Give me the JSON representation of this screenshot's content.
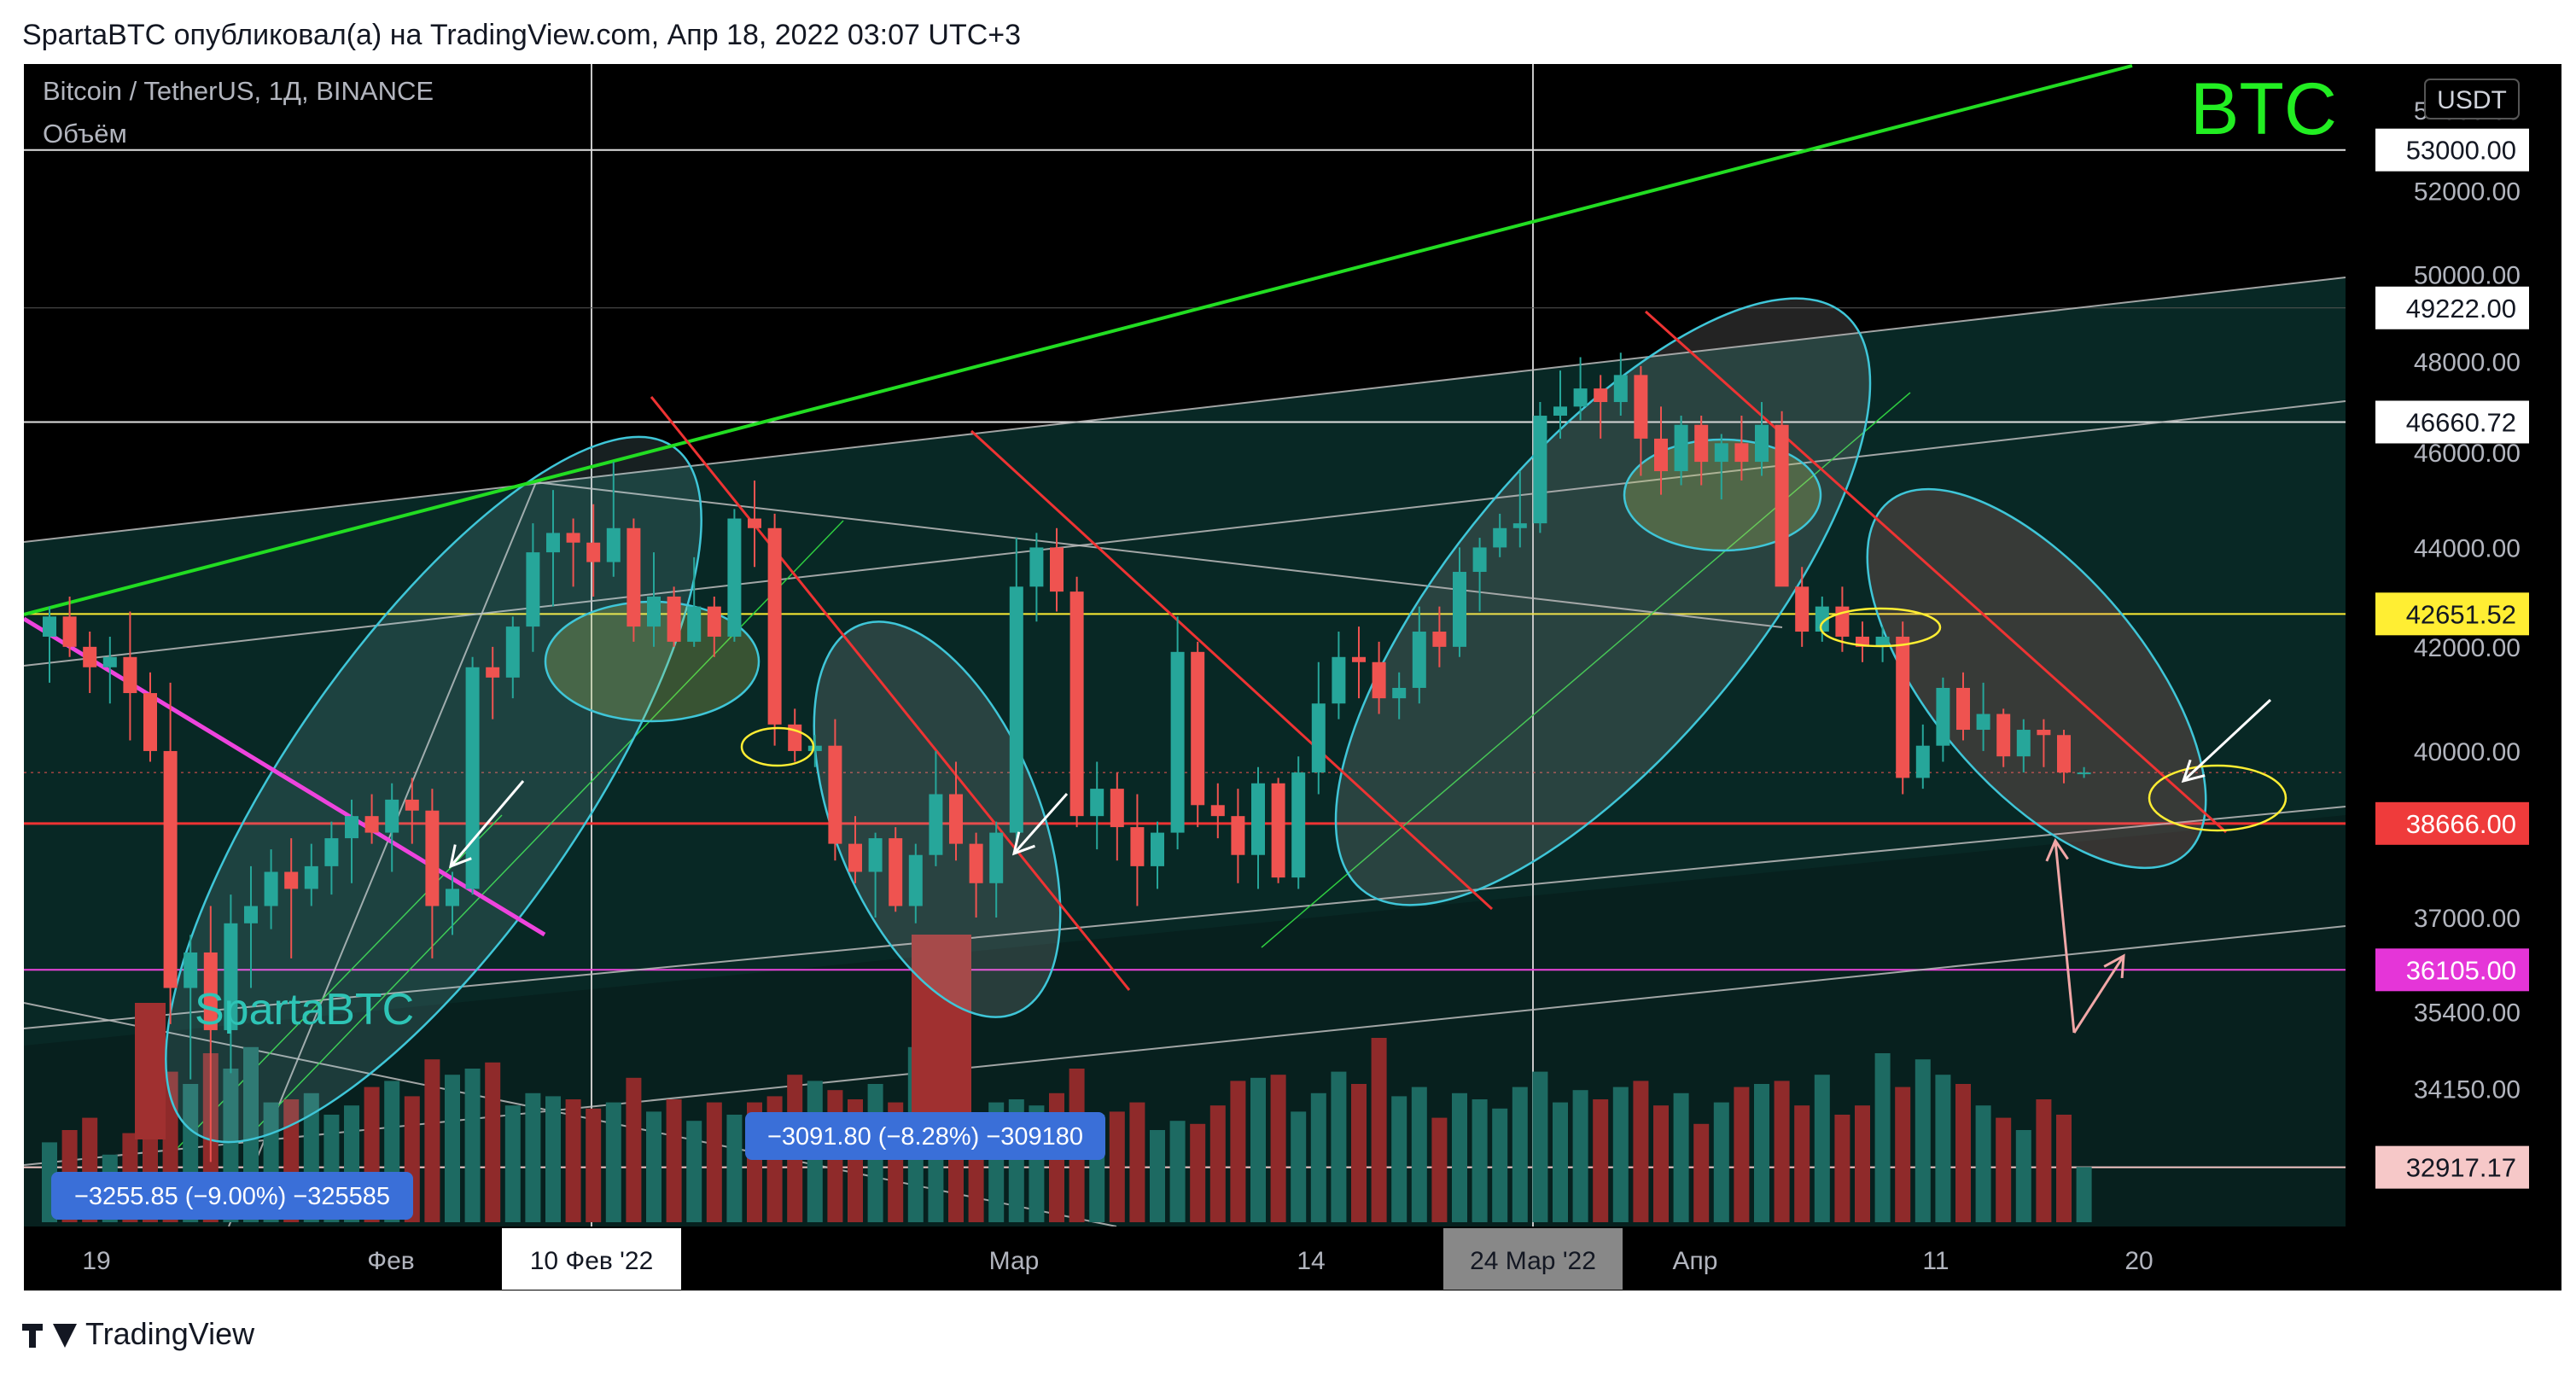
{
  "header": {
    "publisher_line": "SpartaBTC опубликовал(а) на TradingView.com, Апр 18, 2022 03:07 UTC+3"
  },
  "footer": {
    "brand": "TradingView"
  },
  "colors": {
    "background": "#000000",
    "up": "#26a69a",
    "down": "#ef5350",
    "green_line": "#22dd22",
    "magenta_line": "#ee44dd",
    "red_line": "#ee3333",
    "ellipse": "#3fc6d8",
    "yellow": "#ffee33",
    "watermark_green": "#22ee22",
    "watermark_teal": "#2ec4b6"
  },
  "chart_data": {
    "type": "candlestick",
    "symbol_line": "Bitcoin / TetherUS, 1Д, BINANCE",
    "volume_label": "Объём",
    "currency_badge": "USDT",
    "watermark": "BTC",
    "signature": "SpartaBTC",
    "price_scale": "log",
    "ylim": [
      32300,
      55000
    ],
    "y_tick_labels": [
      "54000.00",
      "52000.00",
      "50000.00",
      "48000.00",
      "46000.00",
      "44000.00",
      "42000.00",
      "40000.00",
      "37000.00",
      "35400.00",
      "34150.00"
    ],
    "x_tick_labels": [
      "19",
      "Фев",
      "10 Фев '22",
      "Мар",
      "14",
      "24 Мар '22",
      "Апр",
      "11",
      "20"
    ],
    "crosshair_dates": [
      "10 Фев '22",
      "24 Мар '22"
    ],
    "price_labels": [
      {
        "value": "53000.00",
        "style": "white"
      },
      {
        "value": "49222.00",
        "style": "white"
      },
      {
        "value": "46660.72",
        "style": "white"
      },
      {
        "value": "42651.52",
        "style": "yellow"
      },
      {
        "value": "38666.00",
        "style": "red"
      },
      {
        "value": "36105.00",
        "style": "magenta"
      },
      {
        "value": "32917.17",
        "style": "pink"
      }
    ],
    "measure_labels": [
      "−3255.85 (−9.00%) −325585",
      "−3091.80 (−8.28%) −309180"
    ],
    "candles": [
      [
        42200,
        42800,
        41300,
        42600
      ],
      [
        42600,
        43000,
        41800,
        42000
      ],
      [
        42000,
        42300,
        41100,
        41600
      ],
      [
        41600,
        42200,
        40900,
        41800
      ],
      [
        41800,
        42700,
        40200,
        41100
      ],
      [
        41100,
        41500,
        39800,
        40000
      ],
      [
        40000,
        41300,
        35200,
        35800
      ],
      [
        35800,
        36700,
        34300,
        36400
      ],
      [
        36400,
        37200,
        33000,
        35100
      ],
      [
        35100,
        37400,
        34400,
        36900
      ],
      [
        36900,
        37900,
        35800,
        37200
      ],
      [
        37200,
        38200,
        36800,
        37800
      ],
      [
        37800,
        38400,
        36300,
        37500
      ],
      [
        37500,
        38300,
        37200,
        37900
      ],
      [
        37900,
        38700,
        37400,
        38400
      ],
      [
        38400,
        39100,
        37600,
        38800
      ],
      [
        38800,
        39200,
        38300,
        38500
      ],
      [
        38500,
        39400,
        37800,
        39100
      ],
      [
        39100,
        39500,
        38300,
        38900
      ],
      [
        38900,
        39300,
        36300,
        37200
      ],
      [
        37200,
        37800,
        36700,
        37500
      ],
      [
        37500,
        41800,
        37400,
        41600
      ],
      [
        41600,
        42000,
        40600,
        41400
      ],
      [
        41400,
        42600,
        41000,
        42400
      ],
      [
        42400,
        44500,
        41900,
        43900
      ],
      [
        43900,
        45200,
        42800,
        44300
      ],
      [
        44300,
        44600,
        43200,
        44100
      ],
      [
        44100,
        44900,
        43000,
        43700
      ],
      [
        43700,
        45800,
        43400,
        44400
      ],
      [
        44400,
        44600,
        42100,
        42400
      ],
      [
        42400,
        43900,
        42000,
        43000
      ],
      [
        43000,
        43200,
        42000,
        42100
      ],
      [
        42100,
        43800,
        42000,
        42800
      ],
      [
        42800,
        43000,
        41800,
        42200
      ],
      [
        42200,
        44800,
        42100,
        44600
      ],
      [
        44600,
        45400,
        43600,
        44400
      ],
      [
        44400,
        44700,
        40100,
        40500
      ],
      [
        40500,
        40800,
        39800,
        40000
      ],
      [
        40000,
        40300,
        39700,
        40100
      ],
      [
        40100,
        40600,
        38000,
        38300
      ],
      [
        38300,
        38800,
        37600,
        37800
      ],
      [
        37800,
        38500,
        37000,
        38400
      ],
      [
        38400,
        38600,
        37100,
        37200
      ],
      [
        37200,
        38300,
        36900,
        38100
      ],
      [
        38100,
        40000,
        37900,
        39200
      ],
      [
        39200,
        39800,
        38000,
        38300
      ],
      [
        38300,
        38500,
        37000,
        37600
      ],
      [
        37600,
        38700,
        37000,
        38500
      ],
      [
        38500,
        44200,
        38300,
        43200
      ],
      [
        43200,
        44300,
        42500,
        44000
      ],
      [
        44000,
        44400,
        42700,
        43100
      ],
      [
        43100,
        43400,
        38600,
        38800
      ],
      [
        38800,
        39800,
        38200,
        39300
      ],
      [
        39300,
        39600,
        38000,
        38600
      ],
      [
        38600,
        39200,
        37200,
        37900
      ],
      [
        37900,
        38700,
        37500,
        38500
      ],
      [
        38500,
        42600,
        38200,
        41900
      ],
      [
        41900,
        42100,
        38600,
        39000
      ],
      [
        39000,
        39400,
        38400,
        38800
      ],
      [
        38800,
        39300,
        37600,
        38100
      ],
      [
        38100,
        39700,
        37500,
        39400
      ],
      [
        39400,
        39500,
        37600,
        37700
      ],
      [
        37700,
        39900,
        37500,
        39600
      ],
      [
        39600,
        41700,
        39200,
        40900
      ],
      [
        40900,
        42300,
        40600,
        41800
      ],
      [
        41800,
        42400,
        41000,
        41700
      ],
      [
        41700,
        42100,
        40700,
        41000
      ],
      [
        41000,
        41500,
        40600,
        41200
      ],
      [
        41200,
        42800,
        40900,
        42300
      ],
      [
        42300,
        42800,
        41600,
        42000
      ],
      [
        42000,
        44000,
        41800,
        43500
      ],
      [
        43500,
        44200,
        42700,
        44000
      ],
      [
        44000,
        44700,
        43800,
        44400
      ],
      [
        44400,
        45600,
        44000,
        44500
      ],
      [
        44500,
        47100,
        44300,
        46800
      ],
      [
        46800,
        47800,
        46300,
        47000
      ],
      [
        47000,
        48100,
        46700,
        47400
      ],
      [
        47400,
        47700,
        46300,
        47100
      ],
      [
        47100,
        48200,
        46800,
        47700
      ],
      [
        47700,
        47900,
        45500,
        46300
      ],
      [
        46300,
        47000,
        45100,
        45600
      ],
      [
        45600,
        46800,
        45300,
        46600
      ],
      [
        46600,
        46800,
        45300,
        45800
      ],
      [
        45800,
        46400,
        45000,
        46200
      ],
      [
        46200,
        46800,
        45400,
        45800
      ],
      [
        45800,
        47100,
        45500,
        46600
      ],
      [
        46600,
        46900,
        43400,
        43200
      ],
      [
        43200,
        43600,
        42000,
        42300
      ],
      [
        42300,
        43000,
        42100,
        42800
      ],
      [
        42800,
        43200,
        41900,
        42200
      ],
      [
        42200,
        42500,
        41700,
        42000
      ],
      [
        42000,
        42400,
        41700,
        42200
      ],
      [
        42200,
        42500,
        39200,
        39500
      ],
      [
        39500,
        40500,
        39300,
        40100
      ],
      [
        40100,
        41400,
        39800,
        41200
      ],
      [
        41200,
        41500,
        40200,
        40400
      ],
      [
        40400,
        41300,
        40000,
        40700
      ],
      [
        40700,
        40800,
        39700,
        39900
      ],
      [
        39900,
        40600,
        39600,
        40400
      ],
      [
        40400,
        40600,
        39700,
        40300
      ],
      [
        40300,
        40400,
        39400,
        39600
      ],
      [
        39600,
        39700,
        39500,
        39600
      ]
    ],
    "volumes": [
      26,
      30,
      34,
      22,
      29,
      40,
      49,
      45,
      55,
      50,
      57,
      39,
      40,
      42,
      35,
      38,
      44,
      46,
      41,
      53,
      48,
      50,
      52,
      38,
      42,
      41,
      40,
      37,
      39,
      47,
      36,
      40,
      33,
      39,
      35,
      39,
      41,
      48,
      46,
      43,
      40,
      45,
      39,
      57,
      50,
      62,
      31,
      39,
      40,
      38,
      42,
      50,
      35,
      36,
      39,
      30,
      33,
      32,
      38,
      46,
      47,
      48,
      36,
      42,
      49,
      45,
      60,
      41,
      44,
      34,
      42,
      40,
      37,
      44,
      49,
      39,
      43,
      40,
      44,
      46,
      38,
      42,
      32,
      39,
      44,
      45,
      46,
      38,
      48,
      35,
      38,
      55,
      44,
      53,
      48,
      45,
      38,
      34,
      30,
      40,
      35,
      18
    ]
  }
}
